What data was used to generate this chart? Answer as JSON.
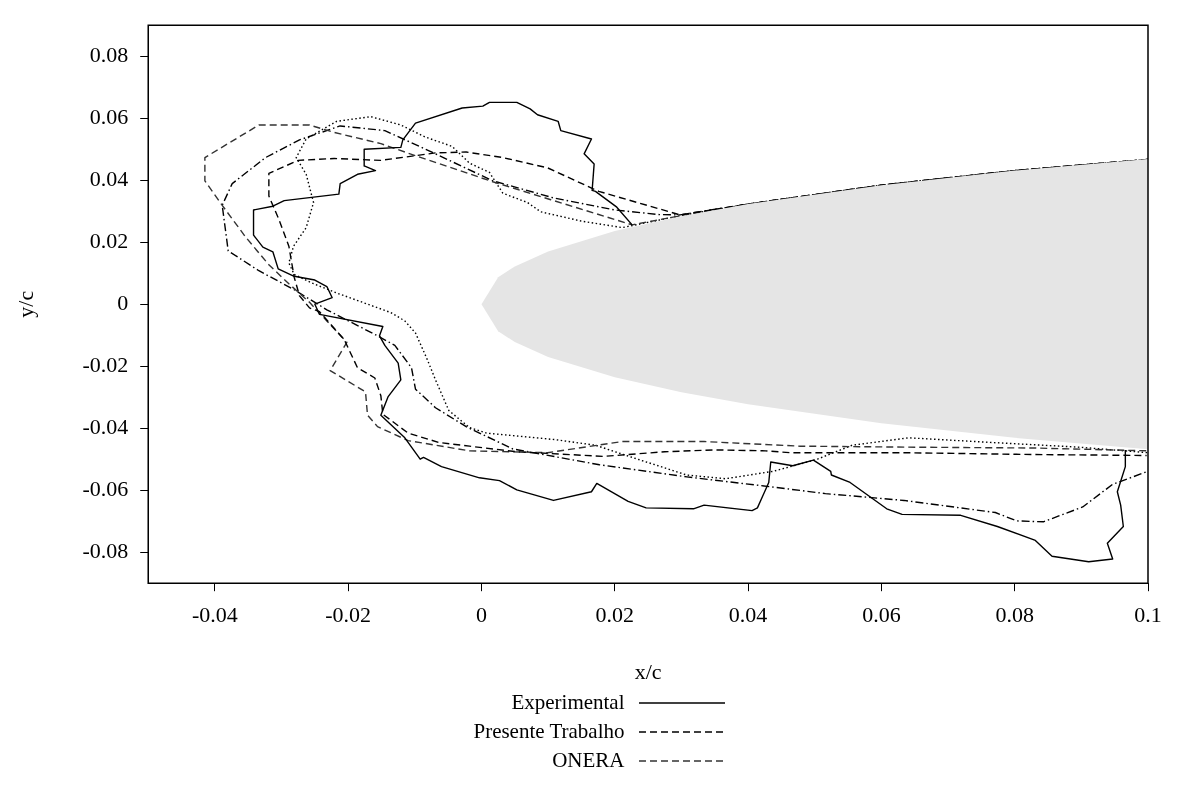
{
  "chart_data": {
    "type": "line",
    "xlabel": "x/c",
    "ylabel": "y/c",
    "xlim": [
      -0.05,
      0.1
    ],
    "ylim": [
      -0.09,
      0.09
    ],
    "xticks": [
      -0.04,
      -0.02,
      0,
      0.02,
      0.04,
      0.06,
      0.08,
      0.1
    ],
    "yticks": [
      -0.08,
      -0.06,
      -0.04,
      -0.02,
      0,
      0.02,
      0.04,
      0.06,
      0.08
    ],
    "grid": false,
    "legend": "bottom",
    "marker": "none",
    "series": [
      {
        "type": "area",
        "color": "#e5e5e5",
        "x": [
          0.1,
          0.08,
          0.06,
          0.04,
          0.03,
          0.02,
          0.01,
          0.005,
          0.0025,
          0,
          0.0025,
          0.005,
          0.01,
          0.02,
          0.03,
          0.04,
          0.06,
          0.08,
          0.1
        ],
        "values": [
          0.0468,
          0.0431,
          0.0384,
          0.0323,
          0.0284,
          0.0236,
          0.017,
          0.0122,
          0.0087,
          0,
          -0.0087,
          -0.0122,
          -0.017,
          -0.0236,
          -0.0284,
          -0.0323,
          -0.0384,
          -0.0431,
          -0.0468
        ]
      },
      {
        "name": "Experimental",
        "color": "#000000",
        "line_style": "solid",
        "x": [
          0.0226,
          0.0203,
          0.0171,
          0.0166,
          0.0169,
          0.0154,
          0.0165,
          0.0119,
          0.0115,
          0.0084,
          0.0073,
          0.0053,
          0.0031,
          0.0012,
          0.0002,
          -0.0029,
          -0.0099,
          -0.0118,
          -0.0121,
          -0.0176,
          -0.0176,
          -0.0159,
          -0.0186,
          -0.0212,
          -0.0214,
          -0.0296,
          -0.0313,
          -0.0342,
          -0.0342,
          -0.0328,
          -0.0313,
          -0.0305,
          -0.0281,
          -0.025,
          -0.0232,
          -0.0224,
          -0.025,
          -0.0243,
          -0.0148,
          -0.0153,
          -0.0145,
          -0.0125,
          -0.0121,
          -0.014,
          -0.0151,
          -0.0115,
          -0.0092,
          -0.0087,
          -0.006,
          -0.0003,
          0.0027,
          0.0053,
          0.0108,
          0.0165,
          0.0173,
          0.022,
          0.0247,
          0.0318,
          0.0334,
          0.0406,
          0.0414,
          0.0431,
          0.0434,
          0.0467,
          0.0498,
          0.0524,
          0.0525,
          0.0553,
          0.0608,
          0.0631,
          0.0719,
          0.0774,
          0.0831,
          0.0856,
          0.0911,
          0.0947,
          0.0939,
          0.0963,
          0.0959,
          0.0954,
          0.0966,
          0.0966
        ],
        "values": [
          0.0256,
          0.0313,
          0.0364,
          0.0367,
          0.0452,
          0.0485,
          0.0533,
          0.056,
          0.059,
          0.0611,
          0.063,
          0.0651,
          0.0651,
          0.0651,
          0.0639,
          0.0633,
          0.0584,
          0.053,
          0.0506,
          0.05,
          0.0446,
          0.0431,
          0.0419,
          0.0389,
          0.0355,
          0.0334,
          0.0316,
          0.0304,
          0.0223,
          0.0184,
          0.0169,
          0.0114,
          0.009,
          0.0078,
          0.0057,
          0.0021,
          0,
          -0.0033,
          -0.0072,
          -0.0102,
          -0.0133,
          -0.019,
          -0.0244,
          -0.0298,
          -0.0358,
          -0.0431,
          -0.05,
          -0.0494,
          -0.0524,
          -0.056,
          -0.0569,
          -0.0599,
          -0.0633,
          -0.0605,
          -0.0578,
          -0.0636,
          -0.0657,
          -0.066,
          -0.0648,
          -0.0666,
          -0.0657,
          -0.0575,
          -0.0509,
          -0.0521,
          -0.0503,
          -0.0539,
          -0.0551,
          -0.0575,
          -0.066,
          -0.0678,
          -0.0681,
          -0.0717,
          -0.0762,
          -0.0813,
          -0.0831,
          -0.0822,
          -0.0771,
          -0.0717,
          -0.0648,
          -0.0605,
          -0.0524,
          -0.047
        ]
      },
      {
        "name": "Presente Trabalho",
        "color": "#000000",
        "line_style": "dashed",
        "x": [
          0.1,
          0.08,
          0.06,
          0.04,
          0.0298,
          0.0176,
          0.0099,
          0.0032,
          -0.0023,
          -0.0069,
          -0.0151,
          -0.0221,
          -0.0275,
          -0.0319,
          -0.0319,
          -0.0304,
          -0.0289,
          -0.0281,
          -0.0273,
          -0.0258,
          -0.0243,
          -0.0206,
          -0.0186,
          -0.016,
          -0.0151,
          -0.0148,
          -0.011,
          -0.0064,
          -0.0018,
          0.0053,
          0.0183,
          0.0275,
          0.035,
          0.0426,
          0.0464,
          0.0634,
          0.0831,
          0.0998
        ],
        "values": [
          0.0467,
          0.0431,
          0.0384,
          0.0323,
          0.0288,
          0.0364,
          0.044,
          0.0473,
          0.0491,
          0.0488,
          0.0464,
          0.047,
          0.0464,
          0.0422,
          0.0349,
          0.0274,
          0.0187,
          0.0087,
          0.0027,
          -0.0012,
          -0.0024,
          -0.0114,
          -0.0205,
          -0.0238,
          -0.0295,
          -0.0355,
          -0.0416,
          -0.0446,
          -0.0458,
          -0.0476,
          -0.0491,
          -0.0476,
          -0.047,
          -0.0473,
          -0.0479,
          -0.0479,
          -0.0485,
          -0.0488
        ]
      },
      {
        "name": "ONERA",
        "color": "#333333",
        "line_style": "dashed",
        "x": [
          0.1,
          0.08,
          0.06,
          0.04,
          0.03,
          0.0226,
          0.0104,
          0.0017,
          -0.0099,
          -0.0151,
          -0.0221,
          -0.0258,
          -0.0334,
          -0.0415,
          -0.0415,
          -0.0389,
          -0.0354,
          -0.0319,
          -0.0289,
          -0.0258,
          -0.0232,
          -0.0202,
          -0.0227,
          -0.0174,
          -0.0171,
          -0.0156,
          -0.011,
          -0.0018,
          0.0099,
          0.0211,
          0.0334,
          0.0478,
          0.0634,
          0.0831,
          0.1
        ],
        "values": [
          0.0467,
          0.0431,
          0.0384,
          0.0323,
          0.0286,
          0.0256,
          0.0337,
          0.0395,
          0.0479,
          0.0518,
          0.0554,
          0.0578,
          0.0578,
          0.0473,
          0.0398,
          0.0319,
          0.0217,
          0.0127,
          0.0066,
          0.0006,
          -0.0054,
          -0.0123,
          -0.0214,
          -0.0283,
          -0.0358,
          -0.0395,
          -0.044,
          -0.0473,
          -0.0479,
          -0.0443,
          -0.0443,
          -0.0458,
          -0.0461,
          -0.0464,
          -0.0473
        ]
      },
      {
        "color": "#000000",
        "line_style": "dotted",
        "x": [
          0.1,
          0.08,
          0.06,
          0.04,
          0.03,
          0.0211,
          0.015,
          0.0089,
          0.0069,
          0.0032,
          0.0012,
          -0.0018,
          -0.0044,
          -0.0084,
          -0.0121,
          -0.0166,
          -0.0217,
          -0.0263,
          -0.0278,
          -0.0263,
          -0.0252,
          -0.0263,
          -0.0282,
          -0.0289,
          -0.0281,
          -0.0252,
          -0.0217,
          -0.0136,
          -0.0115,
          -0.0099,
          -0.0082,
          -0.0069,
          -0.0049,
          -0.0018,
          0.0008,
          0.0111,
          0.0171,
          0.0243,
          0.0308,
          0.0366,
          0.0438,
          0.0504,
          0.0556,
          0.0641,
          0.0765,
          0.0895,
          0.1
        ],
        "values": [
          0.0467,
          0.0431,
          0.0384,
          0.0323,
          0.0286,
          0.0247,
          0.0268,
          0.0298,
          0.0328,
          0.0358,
          0.0425,
          0.0455,
          0.0509,
          0.0539,
          0.0578,
          0.0605,
          0.059,
          0.0533,
          0.0473,
          0.0419,
          0.0328,
          0.0247,
          0.0187,
          0.0133,
          0.0096,
          0.0066,
          0.0036,
          -0.0027,
          -0.0054,
          -0.0093,
          -0.0175,
          -0.0244,
          -0.0343,
          -0.0398,
          -0.0416,
          -0.0437,
          -0.0455,
          -0.0506,
          -0.0551,
          -0.0563,
          -0.0539,
          -0.05,
          -0.0455,
          -0.0431,
          -0.0446,
          -0.0461,
          -0.0479
        ]
      },
      {
        "color": "#000000",
        "line_style": "dashdot",
        "x": [
          0.1,
          0.08,
          0.06,
          0.04,
          0.0298,
          0.0267,
          0.02,
          0.0108,
          0.0017,
          -0.0084,
          -0.0145,
          -0.0212,
          -0.0273,
          -0.0324,
          -0.0374,
          -0.0389,
          -0.038,
          -0.0334,
          -0.0282,
          -0.0232,
          -0.0156,
          -0.013,
          -0.0105,
          -0.0099,
          -0.0069,
          -0.0023,
          0.0047,
          0.0177,
          0.0308,
          0.0438,
          0.0516,
          0.0634,
          0.0771,
          0.0803,
          0.0843,
          0.0902,
          0.0947,
          0.1
        ],
        "values": [
          0.0467,
          0.0431,
          0.0384,
          0.0323,
          0.0288,
          0.0289,
          0.0304,
          0.0343,
          0.0398,
          0.05,
          0.056,
          0.0575,
          0.053,
          0.0473,
          0.0389,
          0.0319,
          0.0172,
          0.0108,
          0.0048,
          -0.0018,
          -0.0102,
          -0.0133,
          -0.0205,
          -0.0274,
          -0.0334,
          -0.0395,
          -0.0467,
          -0.0518,
          -0.0557,
          -0.059,
          -0.0611,
          -0.0633,
          -0.0672,
          -0.0699,
          -0.0702,
          -0.0654,
          -0.0581,
          -0.0539
        ]
      }
    ]
  }
}
